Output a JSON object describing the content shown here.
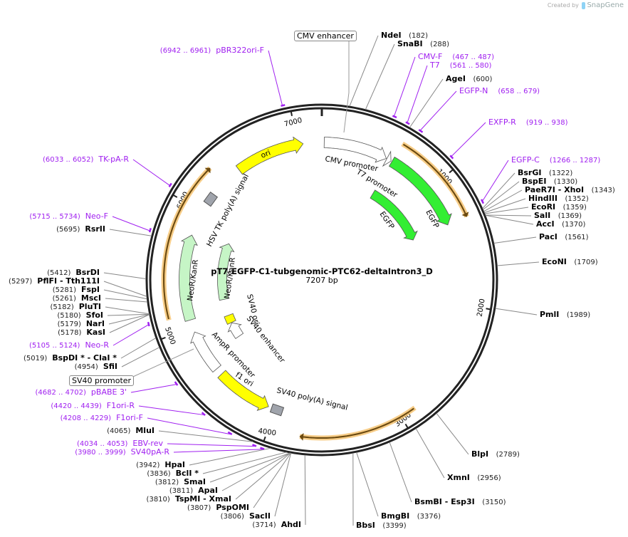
{
  "credit": {
    "prefix": "Created by",
    "brand": "SnapGene"
  },
  "plasmid": {
    "name": "pT7-EGFP-C1-tubgenomic-PTC62-deltaIntron3_D",
    "length_label": "7207 bp",
    "length": 7207
  },
  "ticks": [
    "1000",
    "2000",
    "3000",
    "4000",
    "5000",
    "6000",
    "7000"
  ],
  "colors": {
    "primer": "#a020f0",
    "orf": "#f5c06a",
    "egfp": "#33ee33",
    "neo": "#c6f5c6",
    "ori": "#ffff00",
    "signal": "#a0a4ac"
  },
  "boxed_features": [
    {
      "name": "CMV enhancer",
      "pos": 300
    },
    {
      "name": "SV40 promoter",
      "pos": 4960
    }
  ],
  "features": [
    {
      "name": "CMV promoter",
      "start": 20,
      "end": 560,
      "dir": 1,
      "color": "#ffffff",
      "track": "mid"
    },
    {
      "name": "T7 promoter",
      "start": 565,
      "end": 605,
      "dir": 1,
      "color": "#ffffff",
      "track": "mid"
    },
    {
      "name": "EGFP",
      "start": 613,
      "end": 1330,
      "dir": 1,
      "color": "#33ee33",
      "track": "mid"
    },
    {
      "name": "EGFP",
      "start": 613,
      "end": 1330,
      "dir": 1,
      "color": "#33ee33",
      "track": "inner"
    },
    {
      "name": "ori",
      "start": 6467,
      "end": 7050,
      "dir": 1,
      "color": "#ffff00",
      "track": "mid"
    },
    {
      "name": "HSV TK poly(A) signal",
      "start": 6100,
      "end": 6150,
      "dir": 0,
      "color": "#a0a4ac",
      "track": "mid"
    },
    {
      "name": "NeoR/KanR",
      "start": 5066,
      "end": 5786,
      "dir": 1,
      "color": "#c6f5c6",
      "track": "mid"
    },
    {
      "name": "NeoR/KanR",
      "start": 5180,
      "end": 5830,
      "dir": 1,
      "color": "#c6f5c6",
      "track": "inner"
    },
    {
      "name": "SV40 ori",
      "start": 4900,
      "end": 4990,
      "dir": 0,
      "color": "#ffff00",
      "track": "inner"
    },
    {
      "name": "SV40 enhancer",
      "start": 4720,
      "end": 4895,
      "dir": 1,
      "color": "#ffffff",
      "track": "inner"
    },
    {
      "name": "AmpR promoter",
      "start": 4600,
      "end": 4960,
      "dir": 1,
      "color": "#ffffff",
      "track": "mid"
    },
    {
      "name": "f1 ori",
      "start": 4060,
      "end": 4540,
      "dir": -1,
      "color": "#ffff00",
      "track": "mid"
    },
    {
      "name": "SV40 poly(A) signal",
      "start": 3960,
      "end": 4010,
      "dir": 0,
      "color": "#a0a4ac",
      "track": "mid"
    }
  ],
  "orfs": [
    {
      "start": 613,
      "end": 1330,
      "dir": 1
    },
    {
      "start": 5110,
      "end": 6306,
      "dir": 1
    },
    {
      "start": 2882,
      "end": 3764,
      "dir": 1
    }
  ],
  "enzymes": [
    {
      "name": "NdeI",
      "pos": "182"
    },
    {
      "name": "SnaBI",
      "pos": "288"
    },
    {
      "name": "AgeI",
      "pos": "600"
    },
    {
      "name": "BsrGI",
      "pos": "1322"
    },
    {
      "name": "BspEI",
      "pos": "1330"
    },
    {
      "name": "PaeR7I  - XhoI",
      "pos": "1343"
    },
    {
      "name": "HindIII",
      "pos": "1352"
    },
    {
      "name": "EcoRI",
      "pos": "1359"
    },
    {
      "name": "SalI",
      "pos": "1369"
    },
    {
      "name": "AccI",
      "pos": "1370"
    },
    {
      "name": "PacI",
      "pos": "1561"
    },
    {
      "name": "EcoNI",
      "pos": "1709"
    },
    {
      "name": "PmlI",
      "pos": "1989"
    },
    {
      "name": "BlpI",
      "pos": "2789"
    },
    {
      "name": "XmnI",
      "pos": "2956"
    },
    {
      "name": "BsmBI  - Esp3I",
      "pos": "3150"
    },
    {
      "name": "BmgBI",
      "pos": "3376"
    },
    {
      "name": "BbsI",
      "pos": "3399"
    },
    {
      "name": "AhdI",
      "pos": "3714"
    },
    {
      "name": "SacII",
      "pos": "3806"
    },
    {
      "name": "PspOMI",
      "pos": "3807"
    },
    {
      "name": "TspMI  - XmaI",
      "pos": "3810"
    },
    {
      "name": "ApaI",
      "pos": "3811"
    },
    {
      "name": "SmaI",
      "pos": "3812"
    },
    {
      "name": "BclI *",
      "pos": "3836"
    },
    {
      "name": "HpaI",
      "pos": "3942"
    },
    {
      "name": "MluI",
      "pos": "4065"
    },
    {
      "name": "SfiI",
      "pos": "4954"
    },
    {
      "name": "BspDI *  - ClaI *",
      "pos": "5019"
    },
    {
      "name": "KasI",
      "pos": "5178"
    },
    {
      "name": "NarI",
      "pos": "5179"
    },
    {
      "name": "SfoI",
      "pos": "5180"
    },
    {
      "name": "PluTI",
      "pos": "5182"
    },
    {
      "name": "MscI",
      "pos": "5261"
    },
    {
      "name": "FspI",
      "pos": "5281"
    },
    {
      "name": "PflFI  - Tth111I",
      "pos": "5297"
    },
    {
      "name": "BsrDI",
      "pos": "5412"
    },
    {
      "name": "RsrII",
      "pos": "5695"
    }
  ],
  "primers": [
    {
      "name": "CMV-F",
      "range": "(467 .. 487)",
      "start": 467,
      "end": 487
    },
    {
      "name": "T7",
      "range": "(561 .. 580)",
      "start": 561,
      "end": 580
    },
    {
      "name": "EGFP-N",
      "range": "(658 .. 679)",
      "start": 658,
      "end": 679
    },
    {
      "name": "EXFP-R",
      "range": "(919 .. 938)",
      "start": 919,
      "end": 938
    },
    {
      "name": "EGFP-C",
      "range": "(1266 .. 1287)",
      "start": 1266,
      "end": 1287
    },
    {
      "name": "SV40pA-R",
      "range": "(3980 .. 3999)",
      "start": 3980,
      "end": 3999
    },
    {
      "name": "EBV-rev",
      "range": "(4034 .. 4053)",
      "start": 4034,
      "end": 4053
    },
    {
      "name": "F1ori-F",
      "range": "(4208 .. 4229)",
      "start": 4208,
      "end": 4229
    },
    {
      "name": "F1ori-R",
      "range": "(4420 .. 4439)",
      "start": 4420,
      "end": 4439
    },
    {
      "name": "pBABE 3'",
      "range": "(4682 .. 4702)",
      "start": 4682,
      "end": 4702
    },
    {
      "name": "Neo-R",
      "range": "(5105 .. 5124)",
      "start": 5105,
      "end": 5124
    },
    {
      "name": "Neo-F",
      "range": "(5715 .. 5734)",
      "start": 5715,
      "end": 5734
    },
    {
      "name": "TK-pA-R",
      "range": "(6033 .. 6052)",
      "start": 6033,
      "end": 6052
    },
    {
      "name": "pBR322ori-F",
      "range": "(6942 .. 6961)",
      "start": 6942,
      "end": 6961
    }
  ]
}
